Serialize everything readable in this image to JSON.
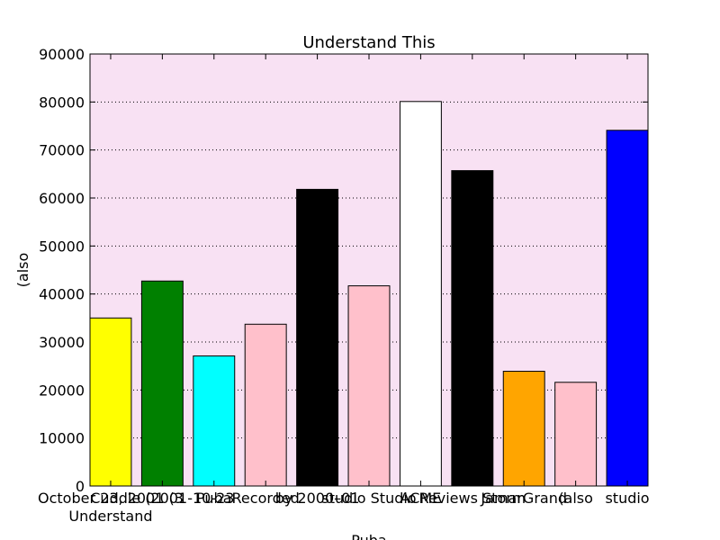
{
  "chart_data": {
    "type": "bar",
    "title": "Understand This",
    "x_label": "Puba",
    "y_label": "(also",
    "categories": [
      "October 23, 2001 (3\nUnderstand",
      "Cuddle (2001-10-23",
      "Puba",
      "Recorded",
      "by 2000–01",
      "studio Studio",
      "ACME",
      "Reviews Storm",
      "JamarGrand",
      "(also",
      "studio"
    ],
    "values": [
      35000,
      42700,
      27100,
      33700,
      61800,
      41700,
      80100,
      65700,
      23900,
      21600,
      74100
    ],
    "colors": [
      "#ffff00",
      "#008000",
      "#00ffff",
      "#ffc0cb",
      "#000000",
      "#ffc0cb",
      "#ffffff",
      "#000000",
      "#ffa500",
      "#ffc0cb",
      "#0000ff"
    ],
    "ylim": [
      0,
      90000
    ],
    "yticks": [
      0,
      10000,
      20000,
      30000,
      40000,
      50000,
      60000,
      70000,
      80000,
      90000
    ],
    "grid": true,
    "background": "#f8e1f3"
  }
}
